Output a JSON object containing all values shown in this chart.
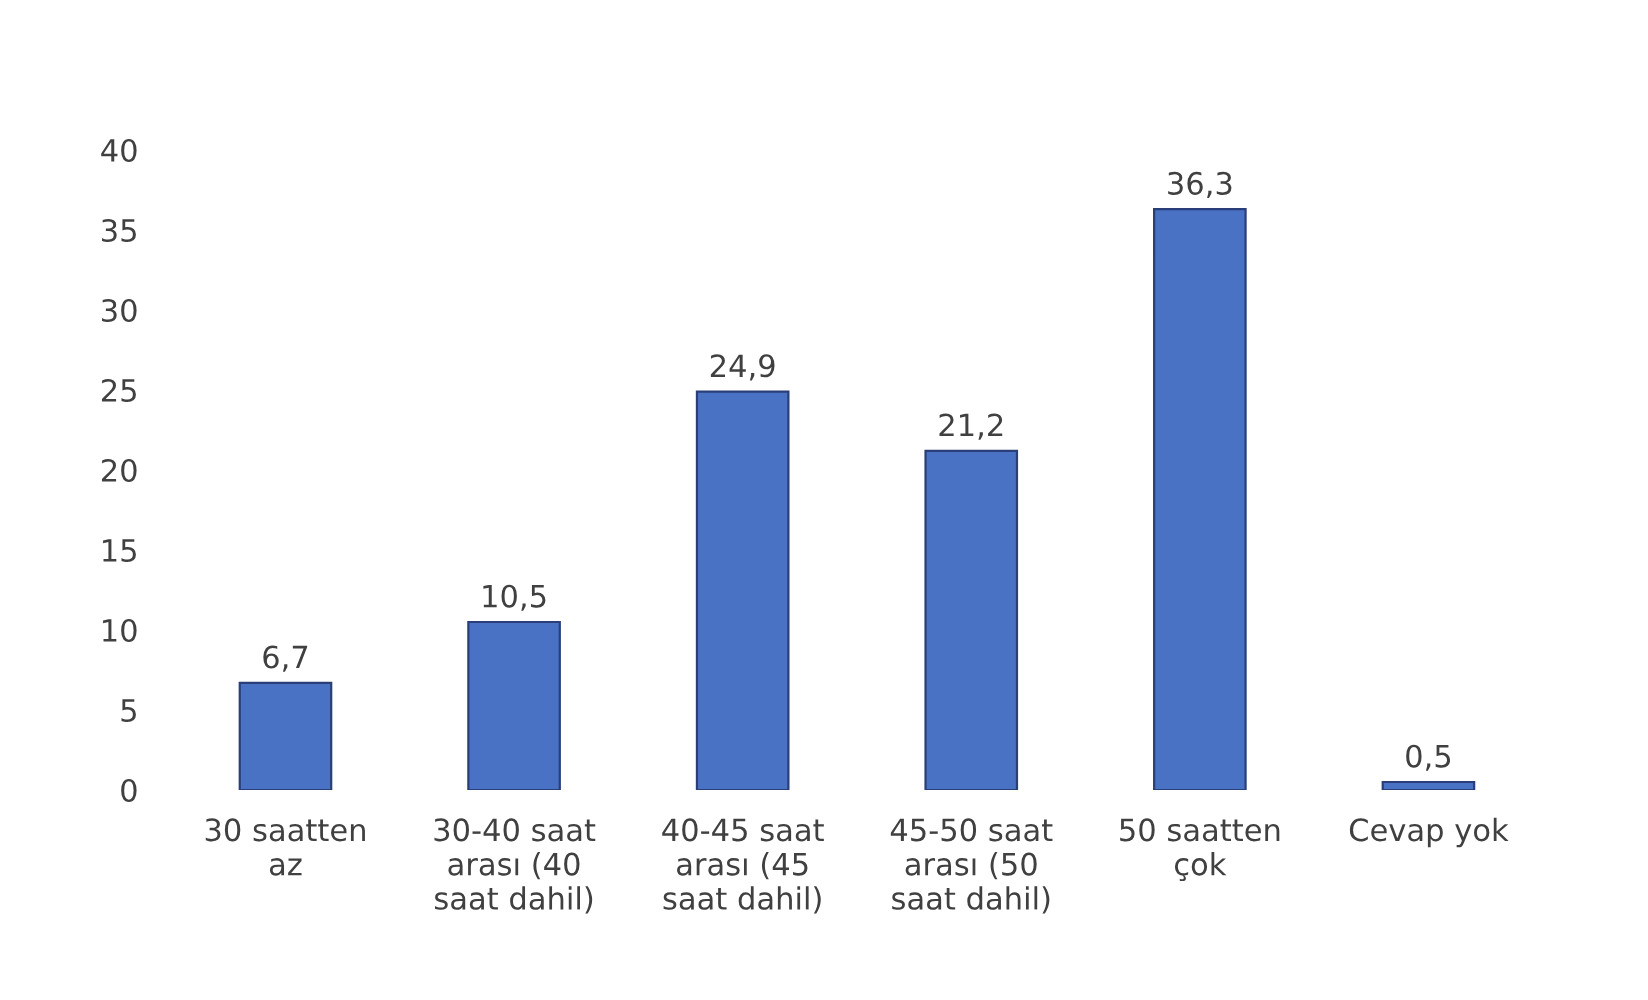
{
  "chart_data": {
    "type": "bar",
    "categories": [
      "30 saatten\naz",
      "30-40 saat\narası (40\nsaat dahil)",
      "40-45 saat\narası (45\nsaat dahil)",
      "45-50 saat\narası (50\nsaat dahil)",
      "50 saatten\nçok",
      "Cevap yok"
    ],
    "values": [
      6.7,
      10.5,
      24.9,
      21.2,
      36.3,
      0.5
    ],
    "value_labels": [
      "6,7",
      "10,5",
      "24,9",
      "21,2",
      "36,3",
      "0,5"
    ],
    "color": "#4a72c4",
    "ylim": [
      0,
      40
    ],
    "yticks": [
      0,
      5,
      10,
      15,
      20,
      25,
      30,
      35,
      40
    ],
    "grid": false
  }
}
